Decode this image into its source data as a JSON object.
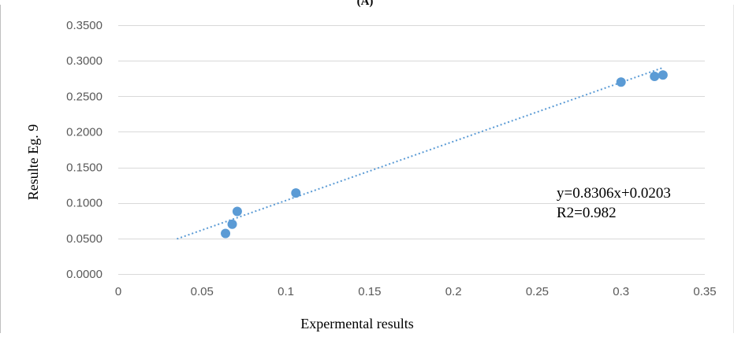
{
  "panel_label": "(A)",
  "chart_data": {
    "type": "scatter",
    "xlabel": "Expermental results",
    "ylabel": "Resulte Eg. 9",
    "xlim": [
      0,
      0.35
    ],
    "ylim": [
      0,
      0.35
    ],
    "x_ticks": [
      "0",
      "0.05",
      "0.1",
      "0.15",
      "0.2",
      "0.25",
      "0.3",
      "0.35"
    ],
    "x_tick_values": [
      0,
      0.05,
      0.1,
      0.15,
      0.2,
      0.25,
      0.3,
      0.35
    ],
    "y_ticks": [
      "0.0000",
      "0.0500",
      "0.1000",
      "0.1500",
      "0.2000",
      "0.2500",
      "0.3000",
      "0.3500"
    ],
    "y_tick_values": [
      0,
      0.05,
      0.1,
      0.15,
      0.2,
      0.25,
      0.3,
      0.35
    ],
    "grid": "horizontal",
    "legend": "none",
    "points": [
      {
        "x": 0.064,
        "y": 0.057
      },
      {
        "x": 0.068,
        "y": 0.07
      },
      {
        "x": 0.071,
        "y": 0.088
      },
      {
        "x": 0.106,
        "y": 0.114
      },
      {
        "x": 0.3,
        "y": 0.27
      },
      {
        "x": 0.32,
        "y": 0.278
      },
      {
        "x": 0.325,
        "y": 0.28
      }
    ],
    "trendline": {
      "type": "linear",
      "slope": 0.8306,
      "intercept": 0.0203,
      "x_range": [
        0.035,
        0.325
      ]
    },
    "annotations": [
      "y=0.8306x+0.0203",
      "R2=0.982"
    ],
    "colors": {
      "points": "#5b9bd5",
      "trendline": "#5b9bd5",
      "grid": "#d9d9d9",
      "text": "#595959"
    }
  }
}
